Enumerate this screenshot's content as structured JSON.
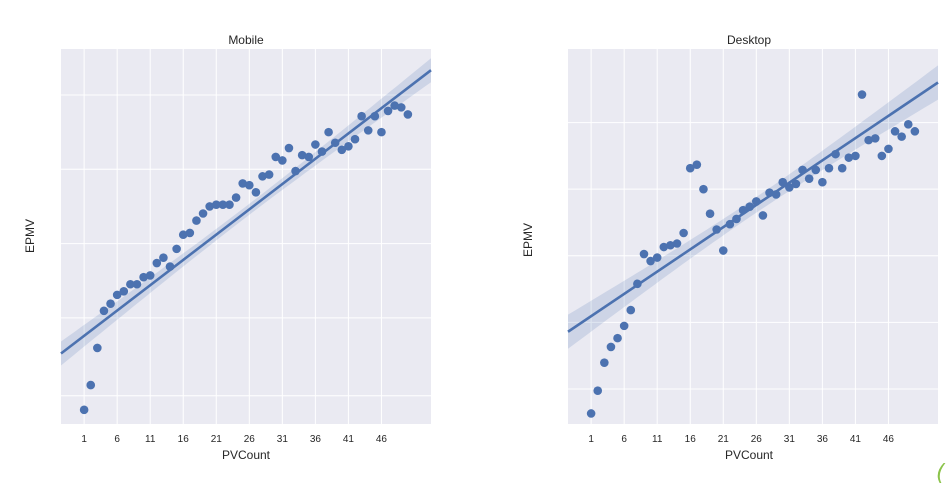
{
  "chart_data": [
    {
      "type": "scatter",
      "title": "Mobile",
      "xlabel": "PVCount",
      "ylabel": "EPMV",
      "x_ticks": [
        1,
        6,
        11,
        16,
        21,
        26,
        31,
        36,
        41,
        46
      ],
      "xlim": [
        -2.5,
        53.5
      ],
      "ylim": [
        0.2,
        10.8
      ],
      "y_gridlines": [
        1.0,
        3.2,
        5.3,
        7.4,
        9.5
      ],
      "y_tick_labels_visible": false,
      "grid": true,
      "regression": {
        "intercept": 2.55,
        "slope": 0.143,
        "ci": "shaded"
      },
      "series": [
        {
          "marker": "circle",
          "color": "#4c72b0",
          "points": [
            [
              1,
              0.6
            ],
            [
              2,
              1.3
            ],
            [
              3,
              2.35
            ],
            [
              4,
              3.4
            ],
            [
              5,
              3.6
            ],
            [
              6,
              3.85
            ],
            [
              7,
              3.95
            ],
            [
              8,
              4.15
            ],
            [
              9,
              4.15
            ],
            [
              10,
              4.35
            ],
            [
              11,
              4.4
            ],
            [
              12,
              4.75
            ],
            [
              13,
              4.9
            ],
            [
              14,
              4.65
            ],
            [
              15,
              5.15
            ],
            [
              16,
              5.55
            ],
            [
              17,
              5.6
            ],
            [
              18,
              5.95
            ],
            [
              19,
              6.15
            ],
            [
              20,
              6.35
            ],
            [
              21,
              6.4
            ],
            [
              22,
              6.4
            ],
            [
              23,
              6.4
            ],
            [
              24,
              6.6
            ],
            [
              25,
              7.0
            ],
            [
              26,
              6.95
            ],
            [
              27,
              6.75
            ],
            [
              28,
              7.2
            ],
            [
              29,
              7.25
            ],
            [
              30,
              7.75
            ],
            [
              31,
              7.65
            ],
            [
              32,
              8.0
            ],
            [
              33,
              7.35
            ],
            [
              34,
              7.8
            ],
            [
              35,
              7.75
            ],
            [
              36,
              8.1
            ],
            [
              37,
              7.9
            ],
            [
              38,
              8.45
            ],
            [
              39,
              8.15
            ],
            [
              40,
              7.95
            ],
            [
              41,
              8.05
            ],
            [
              42,
              8.25
            ],
            [
              43,
              8.9
            ],
            [
              44,
              8.5
            ],
            [
              45,
              8.9
            ],
            [
              46,
              8.45
            ],
            [
              47,
              9.05
            ],
            [
              48,
              9.2
            ],
            [
              49,
              9.15
            ],
            [
              50,
              8.95
            ]
          ]
        }
      ]
    },
    {
      "type": "scatter",
      "title": "Desktop",
      "xlabel": "PVCount",
      "ylabel": "EPMV",
      "x_ticks": [
        1,
        6,
        11,
        16,
        21,
        26,
        31,
        36,
        41,
        46
      ],
      "xlim": [
        -2.5,
        53.5
      ],
      "ylim": [
        0.0,
        10.7
      ],
      "y_gridlines": [
        1.0,
        2.9,
        4.8,
        6.7,
        8.6
      ],
      "y_tick_labels_visible": false,
      "grid": true,
      "regression": {
        "intercept": 2.95,
        "slope": 0.127,
        "ci": "shaded"
      },
      "series": [
        {
          "marker": "circle",
          "color": "#4c72b0",
          "points": [
            [
              1,
              0.3
            ],
            [
              2,
              0.95
            ],
            [
              3,
              1.75
            ],
            [
              4,
              2.2
            ],
            [
              5,
              2.45
            ],
            [
              6,
              2.8
            ],
            [
              7,
              3.25
            ],
            [
              8,
              4.0
            ],
            [
              9,
              4.85
            ],
            [
              10,
              4.65
            ],
            [
              11,
              4.75
            ],
            [
              12,
              5.05
            ],
            [
              13,
              5.1
            ],
            [
              14,
              5.15
            ],
            [
              15,
              5.45
            ],
            [
              16,
              7.3
            ],
            [
              17,
              7.4
            ],
            [
              18,
              6.7
            ],
            [
              19,
              6.0
            ],
            [
              20,
              5.55
            ],
            [
              21,
              4.95
            ],
            [
              22,
              5.7
            ],
            [
              23,
              5.85
            ],
            [
              24,
              6.1
            ],
            [
              25,
              6.2
            ],
            [
              26,
              6.35
            ],
            [
              27,
              5.95
            ],
            [
              28,
              6.6
            ],
            [
              29,
              6.55
            ],
            [
              30,
              6.9
            ],
            [
              31,
              6.75
            ],
            [
              32,
              6.85
            ],
            [
              33,
              7.25
            ],
            [
              34,
              7.0
            ],
            [
              35,
              7.25
            ],
            [
              36,
              6.9
            ],
            [
              37,
              7.3
            ],
            [
              38,
              7.7
            ],
            [
              39,
              7.3
            ],
            [
              40,
              7.6
            ],
            [
              41,
              7.65
            ],
            [
              42,
              9.4
            ],
            [
              43,
              8.1
            ],
            [
              44,
              8.15
            ],
            [
              45,
              7.65
            ],
            [
              46,
              7.85
            ],
            [
              47,
              8.35
            ],
            [
              48,
              8.2
            ],
            [
              49,
              8.55
            ],
            [
              50,
              8.35
            ]
          ]
        }
      ]
    }
  ]
}
